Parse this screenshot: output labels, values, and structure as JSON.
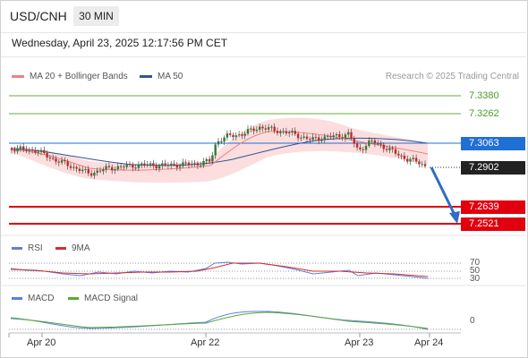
{
  "header": {
    "symbol": "USD/CNH",
    "interval": "30 MIN",
    "datetime": "Wednesday, April 23, 2025 12:17:56 PM CET"
  },
  "legend": {
    "ma20_label": "MA 20 + Bollinger Bands",
    "ma50_label": "MA 50",
    "credit": "Research © 2025 Trading Central",
    "rsi_label": "RSI",
    "ma9_label": "9MA",
    "macd_label": "MACD",
    "macd_signal_label": "MACD Signal"
  },
  "price_levels": {
    "r2": "7.3380",
    "r1": "7.3262",
    "pivot": "7.3063",
    "last": "7.2902",
    "s1": "7.2639",
    "s2": "7.2521"
  },
  "rsi_levels": {
    "upper": "70",
    "mid": "50",
    "lower": "30"
  },
  "macd_levels": {
    "zero": "0"
  },
  "x_axis": {
    "d1": "Apr 20",
    "d2": "Apr 22",
    "d3": "Apr 23",
    "d4": "Apr 24"
  },
  "colors": {
    "ma20": "#f08080",
    "ma50": "#2f5597",
    "resistance": "#6aab3d",
    "pivot": "#1f6fd6",
    "support": "#e0000f",
    "up_candle": "#2e7d32",
    "down_candle": "#c62828",
    "rsi": "#5b7ee6",
    "rsi_ma": "#d32f2f",
    "macd": "#5b7ee6",
    "macd_signal": "#58a832"
  }
}
